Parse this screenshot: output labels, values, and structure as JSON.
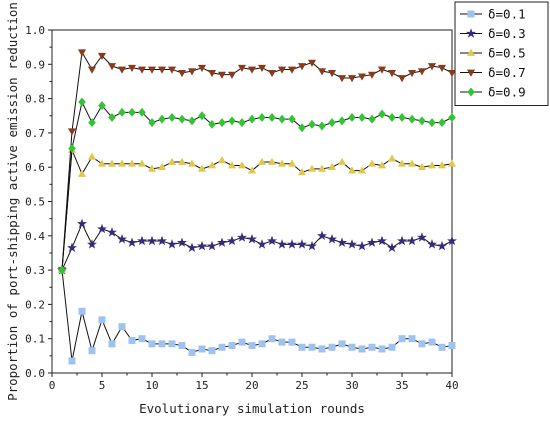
{
  "chart_data": {
    "type": "line",
    "xlabel": "Evolutionary simulation rounds",
    "ylabel": "Proportion of port-shipping active emission reduction",
    "xlim": [
      0,
      40
    ],
    "ylim": [
      0,
      1.0
    ],
    "xticks": [
      "0",
      "5",
      "10",
      "15",
      "20",
      "25",
      "30",
      "35",
      "40"
    ],
    "yticks": [
      "0.0",
      "0.1",
      "0.2",
      "0.3",
      "0.4",
      "0.5",
      "0.6",
      "0.7",
      "0.8",
      "0.9",
      "1.0"
    ],
    "legend_position": "top-right",
    "x": [
      1,
      2,
      3,
      4,
      5,
      6,
      7,
      8,
      9,
      10,
      11,
      12,
      13,
      14,
      15,
      16,
      17,
      18,
      19,
      20,
      21,
      22,
      23,
      24,
      25,
      26,
      27,
      28,
      29,
      30,
      31,
      32,
      33,
      34,
      35,
      36,
      37,
      38,
      39,
      40
    ],
    "series": [
      {
        "name": "δ=0.1",
        "marker": "square",
        "color": "#9ec3ef",
        "values": [
          0.3,
          0.035,
          0.18,
          0.065,
          0.155,
          0.085,
          0.135,
          0.095,
          0.1,
          0.085,
          0.085,
          0.085,
          0.08,
          0.06,
          0.07,
          0.065,
          0.075,
          0.08,
          0.09,
          0.08,
          0.085,
          0.1,
          0.09,
          0.09,
          0.075,
          0.075,
          0.07,
          0.075,
          0.085,
          0.075,
          0.07,
          0.075,
          0.07,
          0.075,
          0.1,
          0.1,
          0.085,
          0.09,
          0.075,
          0.08
        ]
      },
      {
        "name": "δ=0.3",
        "marker": "star",
        "color": "#3b2a7c",
        "values": [
          0.3,
          0.365,
          0.435,
          0.375,
          0.42,
          0.41,
          0.39,
          0.38,
          0.385,
          0.385,
          0.385,
          0.375,
          0.38,
          0.365,
          0.37,
          0.37,
          0.38,
          0.385,
          0.395,
          0.39,
          0.375,
          0.385,
          0.375,
          0.375,
          0.375,
          0.37,
          0.4,
          0.39,
          0.38,
          0.375,
          0.37,
          0.38,
          0.385,
          0.365,
          0.385,
          0.385,
          0.395,
          0.375,
          0.37,
          0.385
        ]
      },
      {
        "name": "δ=0.5",
        "marker": "triangle",
        "color": "#e2c84a",
        "values": [
          0.3,
          0.65,
          0.58,
          0.63,
          0.61,
          0.61,
          0.61,
          0.61,
          0.61,
          0.595,
          0.6,
          0.615,
          0.615,
          0.61,
          0.595,
          0.605,
          0.62,
          0.605,
          0.605,
          0.59,
          0.615,
          0.615,
          0.61,
          0.61,
          0.585,
          0.595,
          0.595,
          0.6,
          0.615,
          0.59,
          0.59,
          0.61,
          0.605,
          0.625,
          0.61,
          0.61,
          0.6,
          0.605,
          0.605,
          0.61
        ]
      },
      {
        "name": "δ=0.7",
        "marker": "triangle-down",
        "color": "#8a3a1c",
        "values": [
          0.3,
          0.705,
          0.935,
          0.885,
          0.925,
          0.895,
          0.885,
          0.89,
          0.885,
          0.885,
          0.885,
          0.885,
          0.875,
          0.88,
          0.89,
          0.875,
          0.87,
          0.87,
          0.89,
          0.885,
          0.89,
          0.875,
          0.885,
          0.885,
          0.895,
          0.905,
          0.88,
          0.875,
          0.86,
          0.86,
          0.865,
          0.87,
          0.885,
          0.875,
          0.86,
          0.875,
          0.88,
          0.895,
          0.89,
          0.875
        ]
      },
      {
        "name": "δ=0.9",
        "marker": "diamond",
        "color": "#33c433",
        "values": [
          0.3,
          0.655,
          0.79,
          0.73,
          0.78,
          0.745,
          0.76,
          0.76,
          0.76,
          0.73,
          0.74,
          0.745,
          0.74,
          0.735,
          0.75,
          0.725,
          0.73,
          0.735,
          0.73,
          0.74,
          0.745,
          0.745,
          0.74,
          0.74,
          0.715,
          0.725,
          0.72,
          0.73,
          0.735,
          0.745,
          0.745,
          0.74,
          0.755,
          0.745,
          0.745,
          0.74,
          0.735,
          0.73,
          0.73,
          0.745
        ]
      }
    ]
  }
}
